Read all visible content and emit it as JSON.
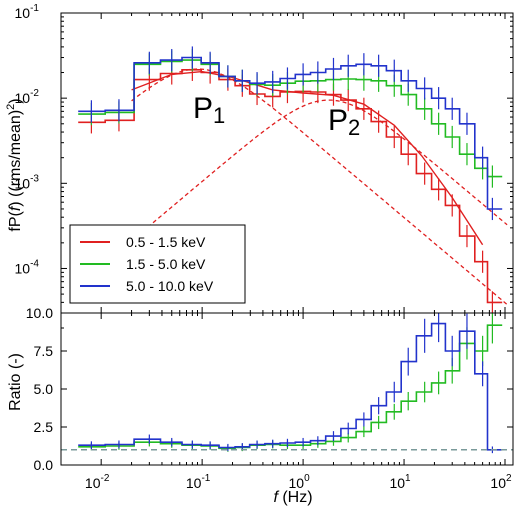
{
  "chart_data": [
    {
      "type": "line",
      "panel": "top",
      "xscale": "log",
      "yscale": "log",
      "xlim": [
        0.004,
        120
      ],
      "ylim": [
        3e-05,
        0.1
      ],
      "xlabel_italic": "f",
      "xlabel_unit": "(Hz)",
      "ylabel_prefix": "fP(",
      "ylabel_italic": "f",
      "ylabel_suffix": ") ((rms/mean)",
      "ylabel_sup": "2",
      "ylabel_close": ")",
      "y_ticks": [
        "10",
        "10",
        "10",
        "10"
      ],
      "y_tick_exps": [
        "-1",
        "-2",
        "-3",
        "-4"
      ],
      "y_tick_values": [
        0.1,
        0.01,
        0.001,
        0.0001
      ],
      "components": [
        {
          "label": "P",
          "subscript": "1",
          "center": 0.09,
          "peak": 0.022,
          "width": 1.2
        },
        {
          "label": "P",
          "subscript": "2",
          "center": 1.8,
          "peak": 0.0095,
          "width": 1.4
        }
      ],
      "legend_position": "lower-left",
      "series": [
        {
          "name": "0.5 - 1.5 keV",
          "color": "#e02020",
          "x": [
            0.008,
            0.015,
            0.03,
            0.05,
            0.08,
            0.12,
            0.18,
            0.25,
            0.35,
            0.5,
            0.7,
            1.0,
            1.4,
            2.0,
            2.8,
            4.0,
            5.6,
            8.0,
            11,
            16,
            22,
            30,
            42,
            60,
            75
          ],
          "y": [
            0.0052,
            0.0055,
            0.0165,
            0.0195,
            0.0215,
            0.02,
            0.0165,
            0.014,
            0.0112,
            0.0105,
            0.0118,
            0.012,
            0.0118,
            0.011,
            0.0095,
            0.0075,
            0.0053,
            0.0035,
            0.0022,
            0.0013,
            0.00085,
            0.00055,
            0.00024,
            0.00012,
            4e-05
          ],
          "model_x": [
            0.02,
            0.05,
            0.1,
            0.2,
            0.5,
            1,
            2,
            4,
            8,
            15,
            30,
            60
          ],
          "model_y": [
            0.0125,
            0.019,
            0.0205,
            0.0175,
            0.0125,
            0.0115,
            0.0108,
            0.0085,
            0.0048,
            0.0021,
            0.00068,
            0.00019
          ]
        },
        {
          "name": "1.5 - 5.0 keV",
          "color": "#22bb22",
          "x": [
            0.008,
            0.015,
            0.03,
            0.05,
            0.08,
            0.12,
            0.18,
            0.25,
            0.35,
            0.5,
            0.7,
            1.0,
            1.4,
            2.0,
            2.8,
            4.0,
            5.6,
            8.0,
            11,
            16,
            22,
            30,
            42,
            60,
            75
          ],
          "y": [
            0.0065,
            0.0068,
            0.025,
            0.027,
            0.028,
            0.025,
            0.018,
            0.016,
            0.0145,
            0.0142,
            0.015,
            0.0158,
            0.016,
            0.0165,
            0.0168,
            0.0165,
            0.016,
            0.014,
            0.011,
            0.0075,
            0.005,
            0.0035,
            0.0022,
            0.0015,
            0.0012
          ]
        },
        {
          "name": "5.0 - 10.0 keV",
          "color": "#2233cc",
          "x": [
            0.008,
            0.015,
            0.03,
            0.05,
            0.08,
            0.12,
            0.18,
            0.25,
            0.35,
            0.5,
            0.7,
            1.0,
            1.4,
            2.0,
            2.8,
            4.0,
            5.6,
            8.0,
            11,
            16,
            22,
            30,
            42,
            60,
            75
          ],
          "y": [
            0.007,
            0.0072,
            0.026,
            0.028,
            0.03,
            0.026,
            0.018,
            0.016,
            0.015,
            0.0155,
            0.017,
            0.019,
            0.02,
            0.022,
            0.024,
            0.025,
            0.024,
            0.021,
            0.016,
            0.013,
            0.01,
            0.0075,
            0.005,
            0.002,
            0.0005
          ]
        }
      ]
    },
    {
      "type": "line",
      "panel": "bottom",
      "xscale": "log",
      "yscale": "linear",
      "xlim": [
        0.004,
        120
      ],
      "ylim": [
        0,
        10
      ],
      "ylabel": "Ratio (-)",
      "x_ticks": [
        "10",
        "10",
        "10",
        "10",
        "10"
      ],
      "x_tick_exps": [
        "-2",
        "-1",
        "0",
        "1",
        "2"
      ],
      "x_tick_values": [
        0.01,
        0.1,
        1,
        10,
        100
      ],
      "y_ticks": [
        "0.0",
        "2.5",
        "5.0",
        "7.5",
        "10.0"
      ],
      "y_tick_values": [
        0,
        2.5,
        5,
        7.5,
        10
      ],
      "reference_line": {
        "y": 1.0,
        "color": "#7a9a9a",
        "style": "dashed"
      },
      "series": [
        {
          "name": "1.5 - 5.0 keV",
          "color": "#22bb22",
          "x": [
            0.008,
            0.015,
            0.03,
            0.05,
            0.08,
            0.12,
            0.18,
            0.25,
            0.35,
            0.5,
            0.7,
            1.0,
            1.4,
            2.0,
            2.8,
            4.0,
            5.6,
            8.0,
            11,
            16,
            22,
            30,
            42,
            60,
            75
          ],
          "y": [
            1.2,
            1.25,
            1.5,
            1.4,
            1.3,
            1.25,
            1.1,
            1.15,
            1.3,
            1.35,
            1.3,
            1.3,
            1.4,
            1.55,
            1.8,
            2.2,
            2.8,
            3.5,
            4.2,
            4.8,
            5.4,
            6.2,
            8.0,
            7.5,
            9.2
          ]
        },
        {
          "name": "5.0 - 10.0 keV",
          "color": "#2233cc",
          "x": [
            0.008,
            0.015,
            0.03,
            0.05,
            0.08,
            0.12,
            0.18,
            0.25,
            0.35,
            0.5,
            0.7,
            1.0,
            1.4,
            2.0,
            2.8,
            4.0,
            5.6,
            8.0,
            11,
            16,
            22,
            30,
            42,
            60,
            75
          ],
          "y": [
            1.3,
            1.35,
            1.7,
            1.5,
            1.35,
            1.3,
            1.15,
            1.2,
            1.35,
            1.4,
            1.45,
            1.5,
            1.6,
            1.9,
            2.4,
            3.0,
            3.9,
            4.8,
            6.8,
            8.5,
            9.3,
            7.5,
            8.8,
            6.0,
            1.0
          ]
        }
      ]
    }
  ]
}
